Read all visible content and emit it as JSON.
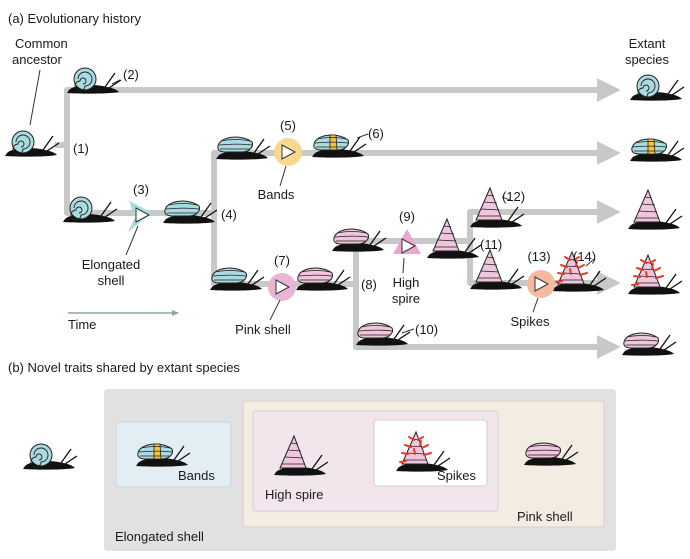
{
  "panel_a": {
    "title": "(a) Evolutionary history",
    "common_ancestor": [
      "Common",
      "ancestor"
    ],
    "extant_species": [
      "Extant",
      "species"
    ],
    "time_label": "Time",
    "node_labels": [
      "(1)",
      "(2)",
      "(3)",
      "(4)",
      "(5)",
      "(6)",
      "(7)",
      "(8)",
      "(9)",
      "(10)",
      "(11)",
      "(12)",
      "(13)",
      "(14)"
    ],
    "events": {
      "elongated": [
        "Elongated",
        "shell"
      ],
      "bands": "Bands",
      "pink": "Pink shell",
      "spire": [
        "High",
        "spire"
      ],
      "spikes": "Spikes"
    }
  },
  "panel_b": {
    "title": "(b) Novel traits shared by extant species",
    "labels": {
      "bands": "Bands",
      "high_spire": "High spire",
      "spikes": "Spikes",
      "pink_shell": "Pink shell",
      "elongated_shell": "Elongated shell"
    }
  },
  "colors": {
    "lineage": "#c8c8c8",
    "snail_blue": "#a9dbe1",
    "snail_pink": "#f0c6de",
    "band_yellow": "#f7c23b",
    "spike_red": "#e83a2a",
    "event_bands": "#f9d78e",
    "event_pink": "#e9b4d6",
    "event_spire": "#e9a6d0",
    "event_spikes": "#f5b9a0",
    "event_elongated": "#a9dbe1",
    "box_outer": "#e1e1e1",
    "box_bands": "#e3eef4",
    "box_pink": "#f2ece3",
    "box_spire": "#f2e6ec"
  }
}
